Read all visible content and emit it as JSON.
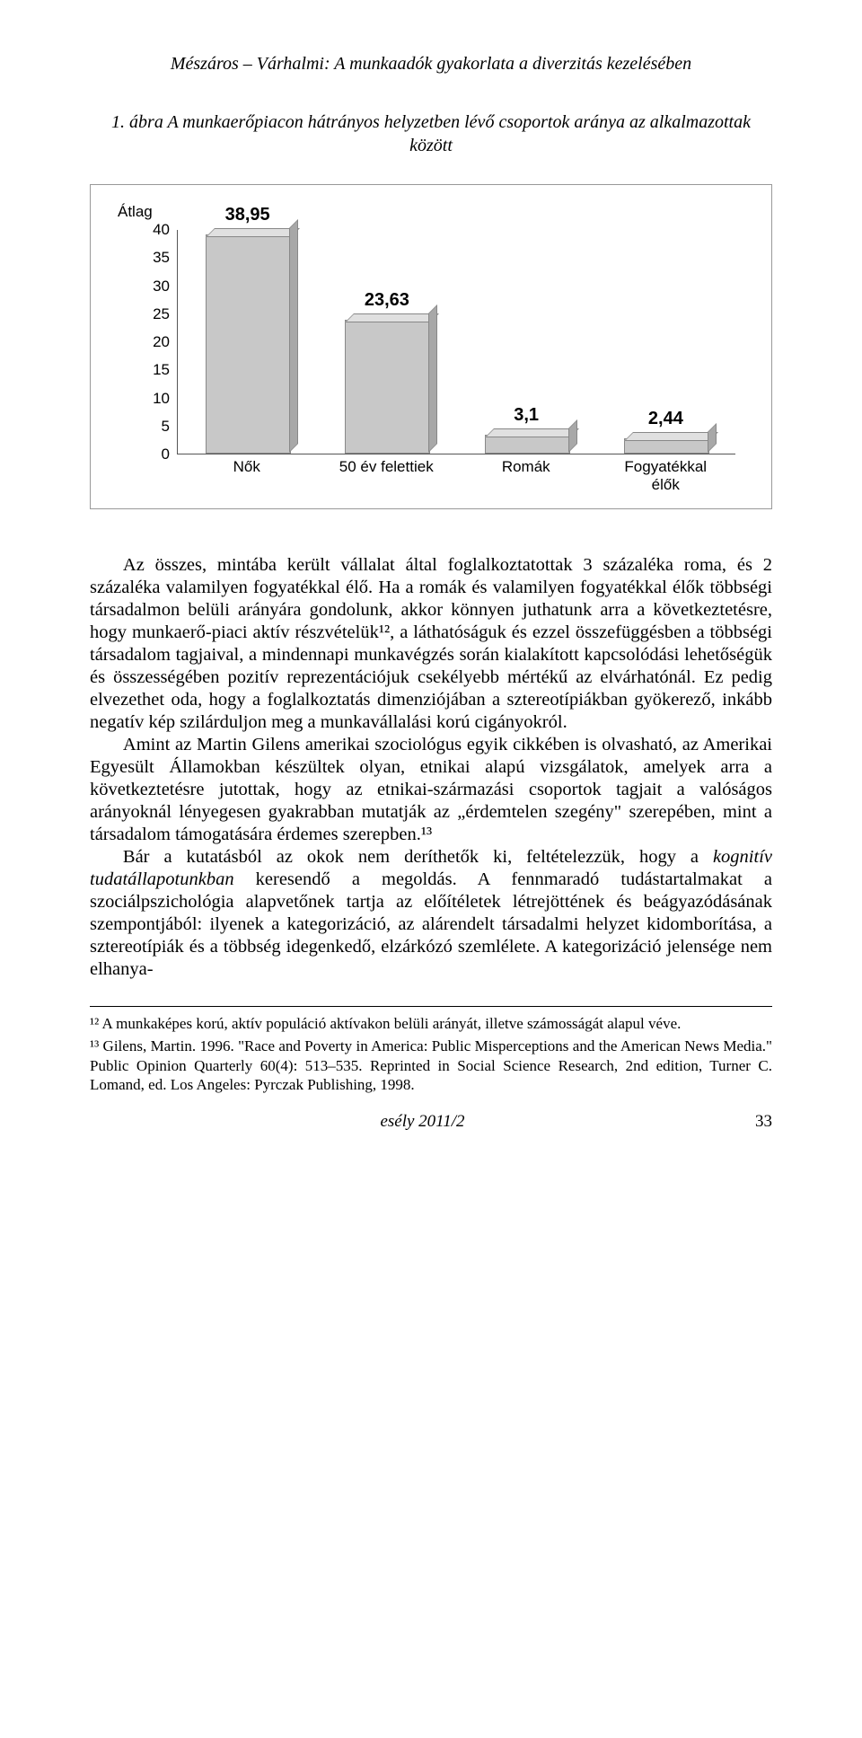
{
  "header": {
    "running_title": "Mészáros – Várhalmi: A munkaadók gyakorlata a diverzitás kezelésében"
  },
  "figure": {
    "caption": "1. ábra A munkaerőpiacon hátrányos helyzetben lévő csoportok aránya az alkalmazottak között"
  },
  "chart": {
    "type": "bar",
    "y_axis_label": "Átlag",
    "ylim": [
      0,
      40
    ],
    "ytick_step": 5,
    "yticks": [
      40,
      35,
      30,
      25,
      20,
      15,
      10,
      5,
      0
    ],
    "categories": [
      "Nők",
      "50 év felettiek",
      "Romák",
      "Fogyatékkal élők"
    ],
    "values": [
      38.95,
      23.63,
      3.1,
      2.44
    ],
    "value_labels": [
      "38,95",
      "23,63",
      "3,1",
      "2,44"
    ],
    "bar_fill": "#c8c8c8",
    "bar_top": "#e0e0e0",
    "bar_side": "#a8a8a8",
    "border_color": "#888888",
    "background": "#ffffff",
    "font_family": "Arial",
    "label_fontsize": 17,
    "value_fontsize": 20
  },
  "body": {
    "p1": "Az összes, mintába került vállalat által foglalkoztatottak 3 százaléka roma, és 2 százaléka valamilyen fogyatékkal élő. Ha a romák és valamilyen fogyatékkal élők többségi társadalmon belüli arányára gondolunk, akkor könnyen juthatunk arra a következtetésre, hogy munkaerő-piaci aktív részvételük¹², a láthatóságuk és ezzel összefüggésben a többségi társadalom tagjaival, a mindennapi munkavégzés során kialakított kapcsolódási lehetőségük és összességében pozitív reprezentációjuk csekélyebb mértékű az elvárhatónál. Ez pedig elvezethet oda, hogy a foglalkoztatás dimenziójában a sztereotípiákban gyökerező, inkább negatív kép szilárduljon meg a munkavállalási korú cigányokról.",
    "p2": "Amint az Martin Gilens amerikai szociológus egyik cikkében is olvasható, az Amerikai Egyesült Államokban készültek olyan, etnikai alapú vizsgálatok, amelyek arra a következtetésre jutottak, hogy az etnikai-származási csoportok tagjait a valóságos arányoknál lényegesen gyakrabban mutatják az „érdemtelen szegény\" szerepében, mint a társadalom támogatására érdemes szerepben.¹³",
    "p3_prefix": "Bár a kutatásból az okok nem deríthetők ki, feltételezzük, hogy a ",
    "p3_italic": "kognitív tudatállapotunkban",
    "p3_suffix": " keresendő a megoldás. A fennmaradó tudástartalmakat a szociálpszichológia alapvetőnek tartja az előítéletek létrejöttének és beágyazódásának szempontjából: ilyenek a kategorizáció, az alárendelt társadalmi helyzet kidomborítása, a sztereotípiák és a többség idegenkedő, elzárkózó szemlélete. A kategorizáció jelensége nem elhanya-"
  },
  "footnotes": {
    "fn12": "¹² A munkaképes korú, aktív populáció aktívakon belüli arányát, illetve számosságát alapul véve.",
    "fn13": "¹³ Gilens, Martin. 1996. \"Race and Poverty in America: Public Misperceptions and the American News Media.\" Public Opinion Quarterly 60(4): 513–535. Reprinted in Social Science Research, 2nd edition, Turner C. Lomand, ed. Los Angeles: Pyrczak Publishing, 1998."
  },
  "footer": {
    "journal": "esély 2011/2",
    "page": "33"
  }
}
